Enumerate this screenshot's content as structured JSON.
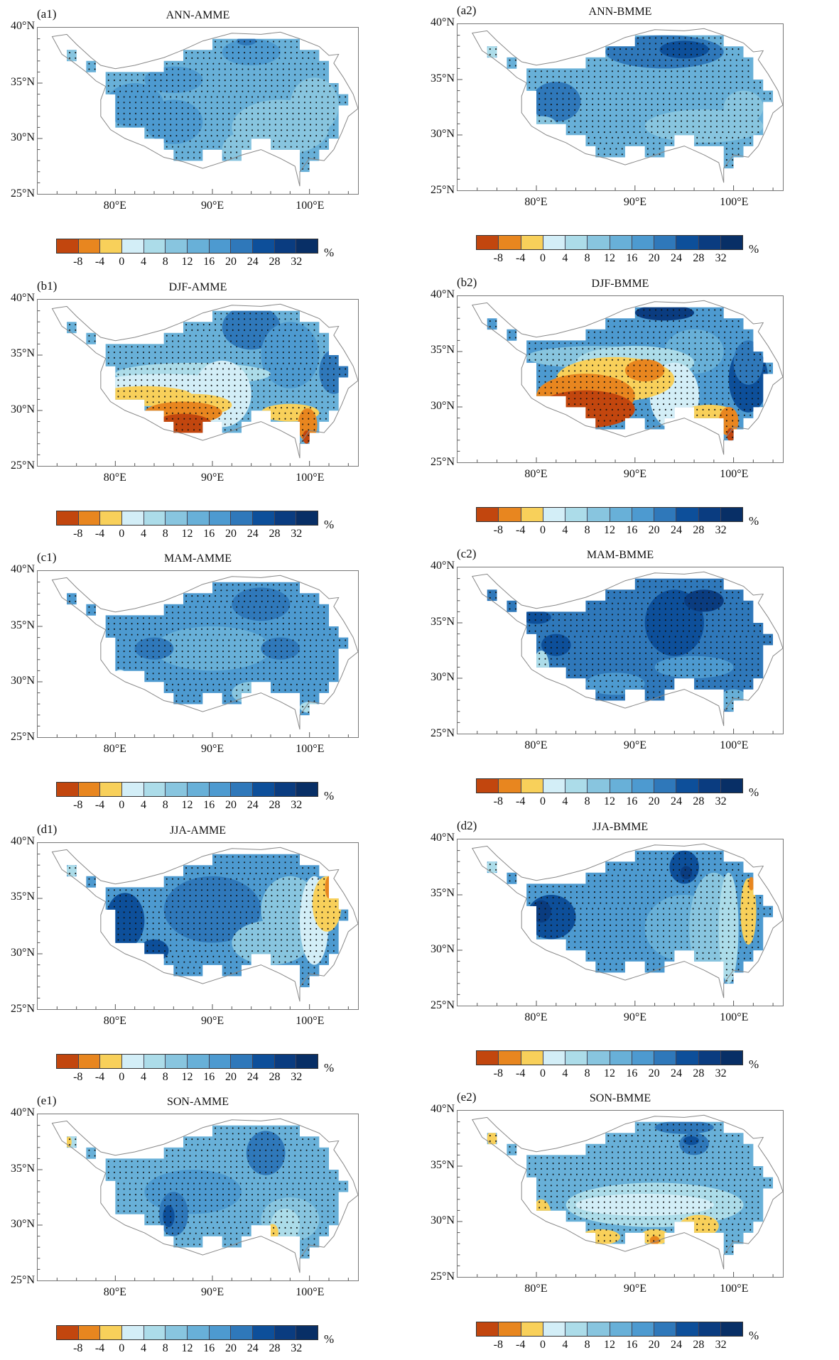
{
  "colorbar": {
    "levels": [
      "-8",
      "-4",
      "0",
      "4",
      "8",
      "12",
      "16",
      "20",
      "24",
      "28",
      "32"
    ],
    "colors": [
      "#c2460e",
      "#e8861f",
      "#f8d05a",
      "#d3eef7",
      "#acdce9",
      "#88c5df",
      "#68b0d8",
      "#4d9ad0",
      "#2f78ba",
      "#0d4f9a",
      "#0a3c80",
      "#082f66"
    ],
    "unit": "%"
  },
  "axes": {
    "lat_ticks": [
      "25°N",
      "30°N",
      "35°N",
      "40°N"
    ],
    "lon_ticks": [
      "80°E",
      "90°E",
      "100°E"
    ]
  },
  "panels": [
    {
      "label": "(a1)",
      "title": "ANN-AMME",
      "field": {
        "base": 6,
        "blobs": [
          [
            86,
            35.3,
            3,
            1.2,
            7
          ],
          [
            82,
            33,
            3,
            2,
            7
          ],
          [
            86,
            31.5,
            3,
            2,
            7
          ],
          [
            94,
            37.8,
            3,
            1.2,
            7
          ],
          [
            93.5,
            38.8,
            1,
            0.4,
            8
          ],
          [
            97,
            31,
            5,
            2.5,
            5
          ],
          [
            93,
            29,
            2,
            1.5,
            5
          ],
          [
            100.5,
            33,
            2.5,
            2.5,
            5
          ],
          [
            75.5,
            37.5,
            0.6,
            0.6,
            5
          ]
        ]
      }
    },
    {
      "label": "(a2)",
      "title": "ANN-BMME",
      "field": {
        "base": 6,
        "blobs": [
          [
            93,
            37.5,
            6,
            1.5,
            8
          ],
          [
            95,
            37.7,
            2.5,
            0.8,
            9
          ],
          [
            82,
            33,
            2.5,
            1.8,
            8
          ],
          [
            97,
            30.8,
            6,
            1.5,
            5
          ],
          [
            101,
            32.5,
            2,
            1.5,
            5
          ],
          [
            80.5,
            31,
            1.5,
            0.7,
            5
          ],
          [
            75.5,
            37.5,
            0.6,
            0.6,
            4
          ]
        ]
      }
    },
    {
      "label": "(b1)",
      "title": "DJF-AMME",
      "field": {
        "base": 6,
        "blobs": [
          [
            94,
            37.5,
            3,
            2,
            8
          ],
          [
            98,
            35,
            3,
            3,
            7
          ],
          [
            102.5,
            33.5,
            1.5,
            2,
            8
          ],
          [
            88,
            33.3,
            8,
            1,
            4
          ],
          [
            85,
            32.3,
            7,
            1,
            3
          ],
          [
            91,
            31.5,
            3,
            3,
            3
          ],
          [
            83,
            31.3,
            5,
            0.9,
            2
          ],
          [
            88,
            30.5,
            4,
            1,
            2
          ],
          [
            87,
            29.8,
            4,
            1,
            1
          ],
          [
            87,
            28.7,
            3,
            1,
            0
          ],
          [
            98,
            29.8,
            3,
            0.8,
            2
          ],
          [
            99.8,
            28.7,
            1,
            1.5,
            1
          ],
          [
            99.7,
            27.6,
            0.4,
            0.6,
            0
          ]
        ]
      }
    },
    {
      "label": "(b2)",
      "title": "DJF-BMME",
      "field": {
        "base": 7,
        "blobs": [
          [
            93,
            38.5,
            3,
            0.7,
            10
          ],
          [
            101.5,
            32.5,
            2,
            3,
            9
          ],
          [
            101.5,
            34,
            1.5,
            2,
            8
          ],
          [
            96,
            35,
            3,
            2,
            6
          ],
          [
            86,
            34.5,
            7,
            1,
            5
          ],
          [
            90,
            34,
            6,
            1.5,
            4
          ],
          [
            94,
            31,
            2.5,
            3,
            3
          ],
          [
            88,
            32.5,
            6,
            2,
            2
          ],
          [
            91,
            33.3,
            2,
            1,
            1
          ],
          [
            85,
            31,
            5,
            2,
            1
          ],
          [
            85,
            29.8,
            5,
            1.7,
            0
          ],
          [
            97.5,
            29.5,
            2.5,
            0.7,
            2
          ],
          [
            99.5,
            28.7,
            1,
            1.3,
            1
          ],
          [
            99.7,
            27.5,
            0.4,
            0.6,
            0
          ]
        ]
      }
    },
    {
      "label": "(c1)",
      "title": "MAM-AMME",
      "field": {
        "base": 7,
        "blobs": [
          [
            90,
            33,
            6,
            2,
            6
          ],
          [
            95,
            37,
            3,
            1.5,
            8
          ],
          [
            97,
            33,
            2,
            1,
            8
          ],
          [
            84,
            33,
            2,
            1,
            8
          ],
          [
            94,
            29,
            2,
            1,
            5
          ],
          [
            80.5,
            30.8,
            0.5,
            0.3,
            3
          ],
          [
            100,
            27.7,
            1,
            0.5,
            4
          ]
        ]
      }
    },
    {
      "label": "(c2)",
      "title": "MAM-BMME",
      "field": {
        "base": 8,
        "blobs": [
          [
            94,
            35,
            3,
            3,
            9
          ],
          [
            97,
            37,
            2,
            1,
            10
          ],
          [
            80,
            35.5,
            1.5,
            0.6,
            9
          ],
          [
            82,
            33,
            1.5,
            1,
            9
          ],
          [
            96,
            31,
            4,
            1,
            7
          ],
          [
            88,
            29.5,
            3,
            1,
            7
          ],
          [
            80.5,
            31,
            0.8,
            1.5,
            4
          ],
          [
            100,
            28,
            1.5,
            1,
            6
          ]
        ]
      }
    },
    {
      "label": "(d1)",
      "title": "JJA-AMME",
      "field": {
        "base": 7,
        "blobs": [
          [
            81,
            33,
            2,
            2.5,
            9
          ],
          [
            84,
            30.3,
            1.5,
            1,
            9
          ],
          [
            90,
            34,
            5,
            3,
            8
          ],
          [
            96,
            31,
            4,
            2,
            5
          ],
          [
            98,
            34,
            3,
            3,
            5
          ],
          [
            100.5,
            33,
            1.5,
            4,
            3
          ],
          [
            101.8,
            34.5,
            1.5,
            2.5,
            2
          ],
          [
            102,
            36,
            0.4,
            1,
            1
          ],
          [
            75.5,
            37.5,
            0.6,
            0.6,
            4
          ]
        ]
      }
    },
    {
      "label": "(d2)",
      "title": "JJA-BMME",
      "field": {
        "base": 7,
        "blobs": [
          [
            81.5,
            33,
            2.5,
            2,
            9
          ],
          [
            80.5,
            33.5,
            1,
            1,
            10
          ],
          [
            95,
            37.5,
            1.5,
            1.5,
            9
          ],
          [
            95.2,
            37,
            0.6,
            0.6,
            10
          ],
          [
            95,
            32,
            4,
            3,
            6
          ],
          [
            98,
            32,
            2.5,
            5,
            5
          ],
          [
            99.5,
            32,
            1,
            5,
            4
          ],
          [
            101.5,
            33.5,
            0.8,
            3,
            2
          ],
          [
            101.8,
            36,
            0.3,
            0.6,
            1
          ],
          [
            75.5,
            37.5,
            0.6,
            0.6,
            4
          ]
        ]
      }
    },
    {
      "label": "(e1)",
      "title": "SON-AMME",
      "field": {
        "base": 6,
        "blobs": [
          [
            95.5,
            36.5,
            2,
            2,
            8
          ],
          [
            88,
            33,
            5,
            2,
            7
          ],
          [
            86,
            31,
            1.5,
            2,
            8
          ],
          [
            85.5,
            30.8,
            0.6,
            1,
            9
          ],
          [
            98,
            30.5,
            3,
            2,
            5
          ],
          [
            97.5,
            30,
            1.5,
            1.5,
            4
          ],
          [
            96.2,
            29.3,
            0.6,
            0.8,
            2
          ],
          [
            75.5,
            37.5,
            0.6,
            0.6,
            4
          ],
          [
            75.2,
            37.5,
            0.3,
            0.5,
            2
          ]
        ]
      }
    },
    {
      "label": "(e2)",
      "title": "SON-BMME",
      "field": {
        "base": 6,
        "blobs": [
          [
            95,
            38.5,
            3,
            0.6,
            8
          ],
          [
            96,
            37,
            1.5,
            1,
            8
          ],
          [
            95.7,
            37.3,
            0.8,
            0.4,
            9
          ],
          [
            92,
            31.5,
            9,
            2,
            4
          ],
          [
            91,
            31.5,
            7,
            1,
            3
          ],
          [
            80.5,
            30.5,
            1,
            1.5,
            2
          ],
          [
            80.6,
            30.2,
            0.6,
            0.5,
            1
          ],
          [
            86.5,
            28.6,
            2,
            0.7,
            2
          ],
          [
            92,
            28.6,
            1.5,
            0.7,
            2
          ],
          [
            92,
            28.3,
            0.5,
            0.4,
            1
          ],
          [
            96.5,
            29.6,
            2,
            1,
            2
          ],
          [
            75.5,
            37.5,
            0.5,
            0.7,
            2
          ]
        ]
      }
    }
  ]
}
